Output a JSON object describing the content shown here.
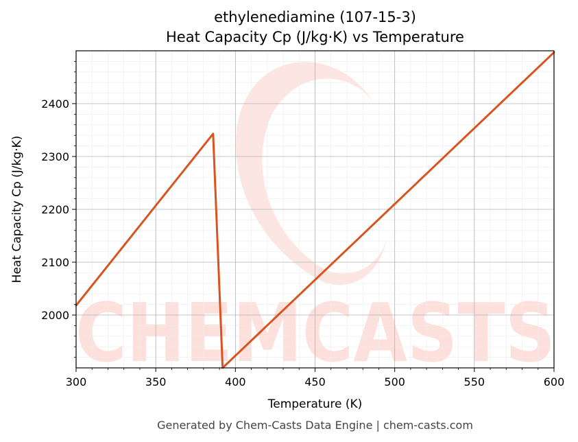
{
  "chart_data": {
    "type": "line",
    "title_line1": "ethylenediamine (107-15-3)",
    "title_line2": "Heat Capacity Cp (J/kg·K) vs Temperature",
    "xlabel": "Temperature (K)",
    "ylabel": "Heat Capacity Cp (J/kg·K)",
    "xlim": [
      300,
      600
    ],
    "ylim": [
      1900,
      2500
    ],
    "xticks": [
      300,
      350,
      400,
      450,
      500,
      550,
      600
    ],
    "yticks": [
      2000,
      2100,
      2200,
      2300,
      2400
    ],
    "grid": true,
    "series": [
      {
        "color": "#d9531e",
        "x": [
          300,
          386,
          392,
          600
        ],
        "y": [
          2018,
          2343,
          1900,
          2497
        ]
      }
    ]
  },
  "watermark": "CHEMCASTS",
  "footer": "Generated by Chem-Casts Data Engine | chem-casts.com"
}
